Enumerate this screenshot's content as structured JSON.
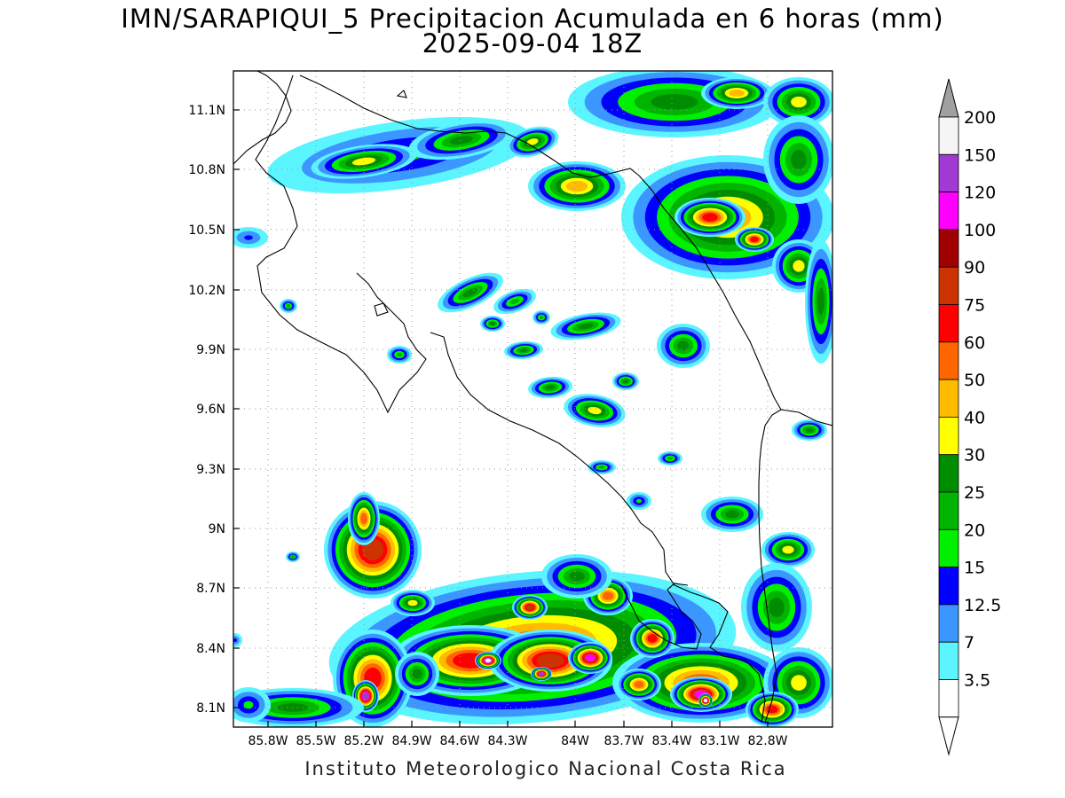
{
  "title": {
    "line1": "IMN/SARAPIQUI_5 Precipitacion Acumulada en 6 horas (mm)",
    "line2": "2025-09-04 18Z"
  },
  "footer": "Instituto Meteorologico Nacional Costa Rica",
  "axes": {
    "lat_labels": [
      "11.1N",
      "10.8N",
      "10.5N",
      "10.2N",
      "9.9N",
      "9.6N",
      "9.3N",
      "9N",
      "8.7N",
      "8.4N",
      "8.1N"
    ],
    "lon_labels": [
      "85.8W",
      "85.5W",
      "85.2W",
      "84.9W",
      "84.6W",
      "84.3W",
      "84W",
      "83.7W",
      "83.4W",
      "83.1W",
      "82.8W"
    ]
  },
  "colorbar": {
    "levels": [
      {
        "label": "200",
        "color": "#f5f5f5"
      },
      {
        "label": "150",
        "color": "#a03ad2"
      },
      {
        "label": "120",
        "color": "#ff00ff"
      },
      {
        "label": "100",
        "color": "#a00000"
      },
      {
        "label": "90",
        "color": "#cc3300"
      },
      {
        "label": "75",
        "color": "#ff0000"
      },
      {
        "label": "60",
        "color": "#ff6600"
      },
      {
        "label": "50",
        "color": "#ffbb00"
      },
      {
        "label": "40",
        "color": "#ffff00"
      },
      {
        "label": "30",
        "color": "#008c00"
      },
      {
        "label": "25",
        "color": "#00b400"
      },
      {
        "label": "20",
        "color": "#00f000"
      },
      {
        "label": "15",
        "color": "#0000ff"
      },
      {
        "label": "12.5",
        "color": "#3c96ff"
      },
      {
        "label": "7",
        "color": "#5af5ff"
      },
      {
        "label": "3.5",
        "color": "#ffffff"
      }
    ],
    "top_arrow_color": "#a0a0a0",
    "bottom_arrow_color": "#ffffff"
  }
}
